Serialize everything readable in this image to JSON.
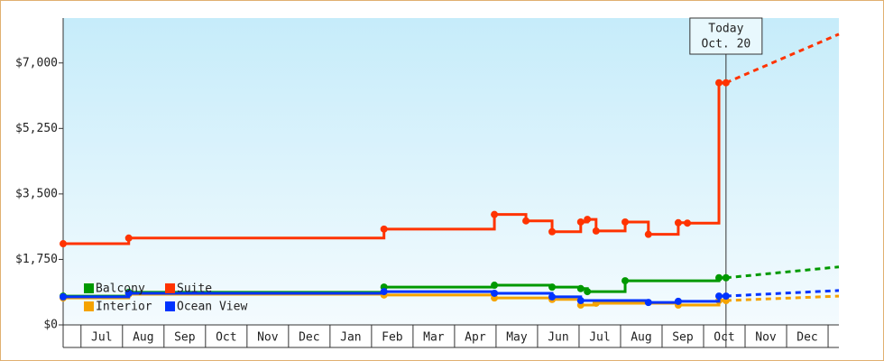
{
  "chart_data": {
    "type": "step-line",
    "xticks": [
      {
        "value": 0,
        "label": "Jul"
      },
      {
        "value": 1,
        "label": "Aug"
      },
      {
        "value": 2,
        "label": "Sep"
      },
      {
        "value": 3,
        "label": "Oct"
      },
      {
        "value": 4,
        "label": "Nov"
      },
      {
        "value": 5,
        "label": "Dec"
      },
      {
        "value": 6,
        "label": "Jan"
      },
      {
        "value": 7,
        "label": "Feb"
      },
      {
        "value": 8,
        "label": "Mar"
      },
      {
        "value": 9,
        "label": "Apr"
      },
      {
        "value": 10,
        "label": "May"
      },
      {
        "value": 11,
        "label": "Jun"
      },
      {
        "value": 12,
        "label": "Jul"
      },
      {
        "value": 13,
        "label": "Aug"
      },
      {
        "value": 14,
        "label": "Sep"
      },
      {
        "value": 15,
        "label": "Oct"
      },
      {
        "value": 16,
        "label": "Nov"
      },
      {
        "value": 17,
        "label": "Dec"
      }
    ],
    "xlim": [
      -0.93,
      17.76
    ],
    "ylim": [
      0,
      8200
    ],
    "yticks": [
      {
        "value": 0,
        "label": "$0"
      },
      {
        "value": 1750,
        "label": "$1,750"
      },
      {
        "value": 3500,
        "label": "$3,500"
      },
      {
        "value": 5250,
        "label": "$5,250"
      },
      {
        "value": 7000,
        "label": "$7,000"
      }
    ],
    "today": {
      "x": 15.04,
      "label": [
        "Today",
        "Oct. 20"
      ]
    },
    "series": [
      {
        "name": "Balcony",
        "color": "#009900",
        "x": [
          -0.93,
          0.65,
          6.8,
          9.46,
          10.85,
          11.54,
          11.7,
          12.61,
          14.87,
          15.04
        ],
        "values": [
          770,
          870,
          1010,
          1060,
          1010,
          970,
          890,
          1180,
          1260,
          1260
        ],
        "forecast": 1550
      },
      {
        "name": "Suite",
        "color": "#ff3300",
        "x": [
          -0.93,
          0.65,
          6.8,
          9.46,
          10.22,
          10.85,
          11.54,
          11.7,
          11.91,
          12.61,
          13.17,
          13.89,
          14.11,
          14.87,
          15.04
        ],
        "values": [
          2170,
          2320,
          2560,
          2950,
          2780,
          2490,
          2750,
          2820,
          2510,
          2750,
          2420,
          2730,
          2720,
          6470,
          6470
        ],
        "forecast": 7770
      },
      {
        "name": "Interior",
        "color": "#f5a300",
        "x": [
          -0.93,
          0.65,
          6.8,
          9.46,
          10.85,
          11.54,
          11.91,
          13.89,
          14.87,
          15.04
        ],
        "values": [
          720,
          820,
          800,
          720,
          680,
          530,
          580,
          530,
          650,
          650
        ],
        "forecast": 770
      },
      {
        "name": "Ocean View",
        "color": "#0033ff",
        "x": [
          -0.93,
          0.65,
          6.8,
          9.46,
          10.85,
          11.54,
          13.17,
          13.89,
          14.87,
          15.04
        ],
        "values": [
          750,
          845,
          890,
          845,
          750,
          650,
          600,
          630,
          770,
          770
        ],
        "forecast": 920
      }
    ]
  }
}
